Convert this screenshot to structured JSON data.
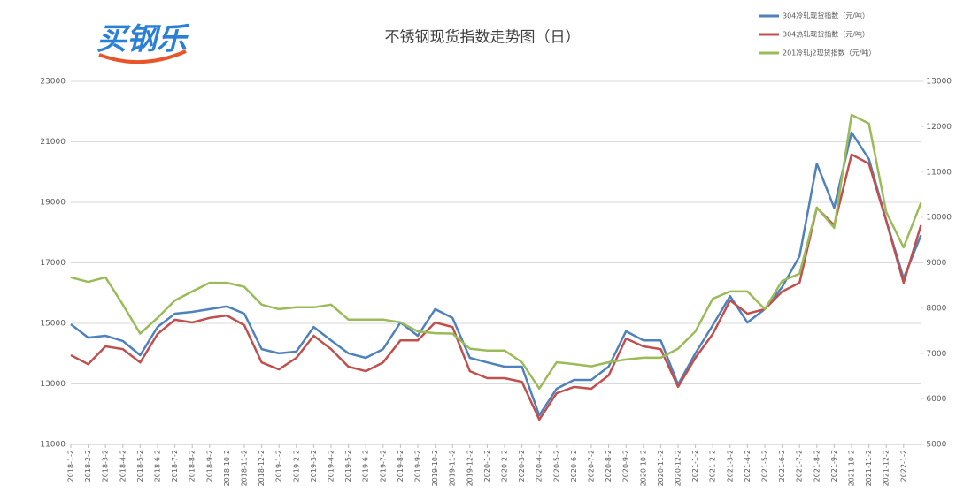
{
  "chart_data": {
    "type": "line",
    "logo": "买钢乐",
    "title": "不锈钢现货指数走势图（日）",
    "categories": [
      "2018-1-2",
      "2018-2-2",
      "2018-3-2",
      "2018-4-2",
      "2018-5-2",
      "2018-6-2",
      "2018-7-2",
      "2018-8-2",
      "2018-9-2",
      "2018-10-2",
      "2018-11-2",
      "2018-12-2",
      "2019-1-2",
      "2019-2-2",
      "2019-3-2",
      "2019-4-2",
      "2019-5-2",
      "2019-6-2",
      "2019-7-2",
      "2019-8-2",
      "2019-9-2",
      "2019-10-2",
      "2019-11-2",
      "2019-12-2",
      "2020-1-2",
      "2020-2-2",
      "2020-3-2",
      "2020-4-2",
      "2020-5-2",
      "2020-6-2",
      "2020-7-2",
      "2020-8-2",
      "2020-9-2",
      "2020-10-2",
      "2020-11-2",
      "2020-12-2",
      "2021-1-2",
      "2021-2-2",
      "2021-3-2",
      "2021-4-2",
      "2021-5-2",
      "2021-6-2",
      "2021-7-2",
      "2021-8-2",
      "2021-9-2",
      "2021-10-2",
      "2021-11-2",
      "2021-12-2",
      "2022-1-2",
      null
    ],
    "series": [
      {
        "name": "304冷轧现货指数（元/吨）",
        "color": "#4f81bd",
        "axis": "y",
        "values": [
          14970,
          14530,
          14590,
          14420,
          13950,
          14880,
          15320,
          15380,
          15470,
          15560,
          15320,
          14150,
          14010,
          14070,
          14880,
          14440,
          14010,
          13860,
          14150,
          15030,
          14590,
          15470,
          15180,
          13860,
          13710,
          13570,
          13570,
          11960,
          12840,
          13130,
          13130,
          13570,
          14740,
          14440,
          14440,
          12980,
          14010,
          14940,
          15900,
          15030,
          15470,
          16200,
          17220,
          20280,
          18820,
          21310,
          20430,
          18400,
          16490,
          17910
        ]
      },
      {
        "name": "304热轧现货指数（元/吨）",
        "color": "#c0504d",
        "axis": "y",
        "values": [
          13950,
          13650,
          14240,
          14150,
          13710,
          14650,
          15120,
          15030,
          15180,
          15260,
          14940,
          13710,
          13480,
          13860,
          14590,
          14150,
          13570,
          13420,
          13710,
          14440,
          14440,
          15030,
          14880,
          13420,
          13190,
          13190,
          13070,
          11820,
          12690,
          12900,
          12840,
          13280,
          14500,
          14240,
          14150,
          12900,
          13860,
          14650,
          15760,
          15320,
          15470,
          16050,
          16340,
          18820,
          18240,
          20580,
          20280,
          18390,
          16340,
          18240
        ]
      },
      {
        "name": "201冷轧j2现货指数（元/吨）",
        "color": "#9bbb59",
        "axis": "y2",
        "values": [
          8680,
          8580,
          8680,
          8080,
          7440,
          7790,
          8170,
          8370,
          8560,
          8560,
          8470,
          8080,
          7980,
          8020,
          8020,
          8080,
          7750,
          7750,
          7750,
          7690,
          7490,
          7450,
          7440,
          7110,
          7070,
          7070,
          6810,
          6230,
          6810,
          6770,
          6720,
          6810,
          6870,
          6910,
          6910,
          7110,
          7490,
          8210,
          8370,
          8370,
          7980,
          8600,
          8760,
          10220,
          9770,
          12260,
          12070,
          10120,
          9340,
          10320
        ]
      }
    ],
    "ylim": [
      11000,
      23000
    ],
    "yticks": [
      11000,
      13000,
      15000,
      17000,
      19000,
      21000,
      23000
    ],
    "y2lim": [
      5000,
      13000
    ],
    "y2ticks": [
      5000,
      6000,
      7000,
      8000,
      9000,
      10000,
      11000,
      12000,
      13000
    ],
    "grid": true
  }
}
